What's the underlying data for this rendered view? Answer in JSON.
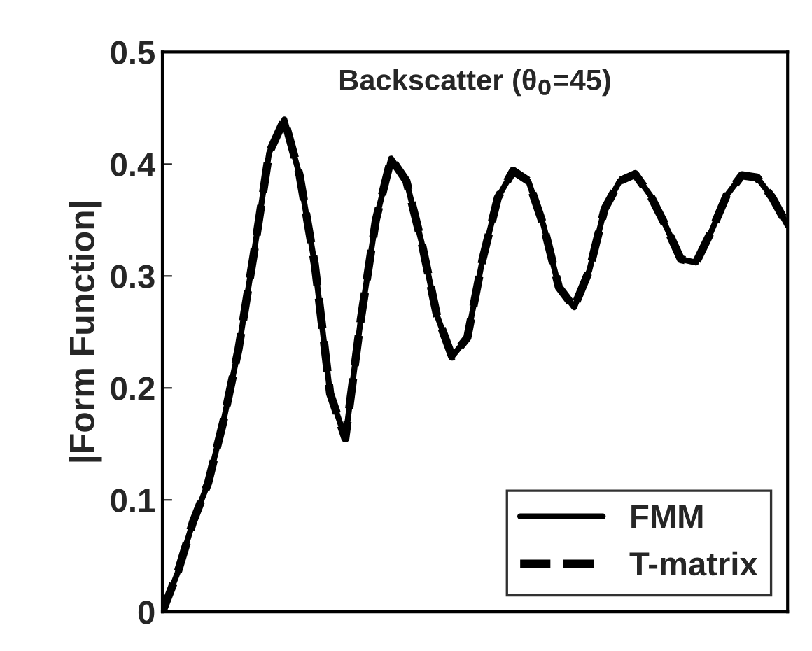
{
  "chart_data": {
    "type": "line",
    "title": "Backscatter (θ$_{0}$=45)",
    "ylabel": "|Form Function|",
    "categories": [
      null,
      null,
      null,
      null,
      null,
      null,
      null,
      null,
      null,
      null,
      null,
      null,
      null,
      null,
      null,
      null,
      null,
      null,
      null,
      null,
      null,
      null,
      null,
      null,
      null,
      null,
      null,
      null,
      null,
      null,
      null,
      null,
      null,
      null,
      null,
      null,
      null,
      null,
      null,
      null,
      null,
      null
    ],
    "series": [
      {
        "name": "FMM",
        "color": "#000000",
        "line_style": "solid",
        "values": [
          0,
          0.035,
          0.08,
          0.115,
          0.17,
          0.235,
          0.32,
          0.41,
          0.44,
          0.39,
          0.31,
          0.195,
          0.155,
          0.26,
          0.35,
          0.405,
          0.385,
          0.33,
          0.265,
          0.228,
          0.245,
          0.315,
          0.37,
          0.394,
          0.385,
          0.345,
          0.29,
          0.272,
          0.305,
          0.36,
          0.385,
          0.391,
          0.372,
          0.345,
          0.315,
          0.312,
          0.34,
          0.372,
          0.39,
          0.388,
          0.37,
          0.345
        ]
      },
      {
        "name": "T-matrix",
        "color": "#000000",
        "line_style": "dashed",
        "values": [
          0,
          0.035,
          0.08,
          0.115,
          0.17,
          0.235,
          0.32,
          0.41,
          0.44,
          0.39,
          0.31,
          0.195,
          0.155,
          0.26,
          0.35,
          0.405,
          0.385,
          0.33,
          0.265,
          0.228,
          0.245,
          0.315,
          0.37,
          0.394,
          0.385,
          0.345,
          0.29,
          0.272,
          0.305,
          0.36,
          0.385,
          0.391,
          0.372,
          0.345,
          0.315,
          0.312,
          0.34,
          0.372,
          0.39,
          0.388,
          0.37,
          0.345
        ]
      }
    ],
    "ylim": [
      0,
      0.5
    ],
    "yticks": [
      0,
      0.1,
      0.2,
      0.3,
      0.4,
      0.5
    ],
    "grid": false,
    "legend": "bottom right",
    "tick_labels": "y"
  }
}
